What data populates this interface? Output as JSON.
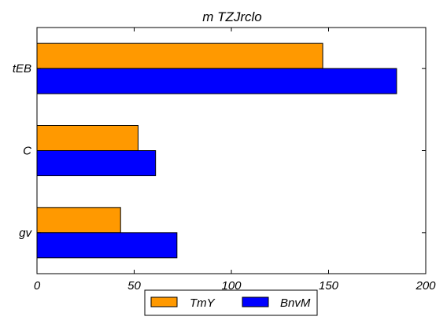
{
  "chart_data": {
    "type": "bar",
    "orientation": "horizontal",
    "title": "m TZJrclo",
    "xlabel": "",
    "ylabel": "",
    "categories": [
      "gv",
      "C",
      "tEB"
    ],
    "series": [
      {
        "name": "TmY",
        "values": [
          43,
          52,
          147
        ],
        "color": "#ff9900"
      },
      {
        "name": "BnvM",
        "values": [
          72,
          61,
          185
        ],
        "color": "#0000ff"
      }
    ],
    "xlim": [
      0,
      200
    ],
    "xticks": [
      "0",
      "50",
      "100",
      "150",
      "200"
    ],
    "grid": false,
    "legend": "bottom-center"
  }
}
